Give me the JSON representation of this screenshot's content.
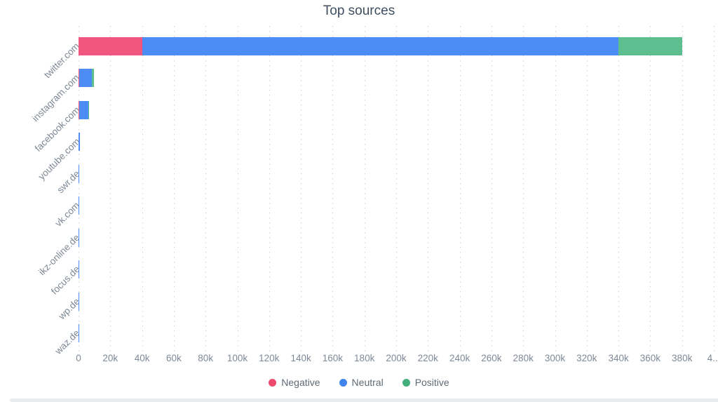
{
  "title": "Top sources",
  "legend": [
    {
      "label": "Negative",
      "color": "#ee4a6e"
    },
    {
      "label": "Neutral",
      "color": "#4284ef"
    },
    {
      "label": "Positive",
      "color": "#42b07c"
    }
  ],
  "axis": {
    "x_ticks": [
      "0",
      "20k",
      "40k",
      "60k",
      "80k",
      "100k",
      "120k",
      "140k",
      "160k",
      "180k",
      "200k",
      "220k",
      "240k",
      "260k",
      "280k",
      "300k",
      "320k",
      "340k",
      "360k",
      "380k",
      "4..."
    ],
    "x_max": 400000
  },
  "chart_data": {
    "type": "bar",
    "orientation": "horizontal",
    "stacked": true,
    "title": "Top sources",
    "categories": [
      "twitter.com",
      "instagram.com",
      "facebook.com",
      "youtube.com",
      "swr.de",
      "vk.com",
      "ikz-online.de",
      "focus.de",
      "wp.de",
      "waz.de"
    ],
    "series": [
      {
        "name": "Negative",
        "color": "#f2557d",
        "values": [
          40000,
          300,
          400,
          0,
          0,
          0,
          0,
          0,
          0,
          0
        ]
      },
      {
        "name": "Neutral",
        "color": "#4d8cf5",
        "values": [
          300000,
          8200,
          5800,
          1100,
          400,
          300,
          120,
          100,
          90,
          80
        ]
      },
      {
        "name": "Positive",
        "color": "#5dbe90",
        "values": [
          40000,
          1200,
          300,
          0,
          0,
          0,
          0,
          0,
          0,
          0
        ]
      }
    ],
    "xlim": [
      0,
      400000
    ],
    "x_tick_step": 20000,
    "grid": "dotted-vertical",
    "legend_position": "bottom"
  }
}
